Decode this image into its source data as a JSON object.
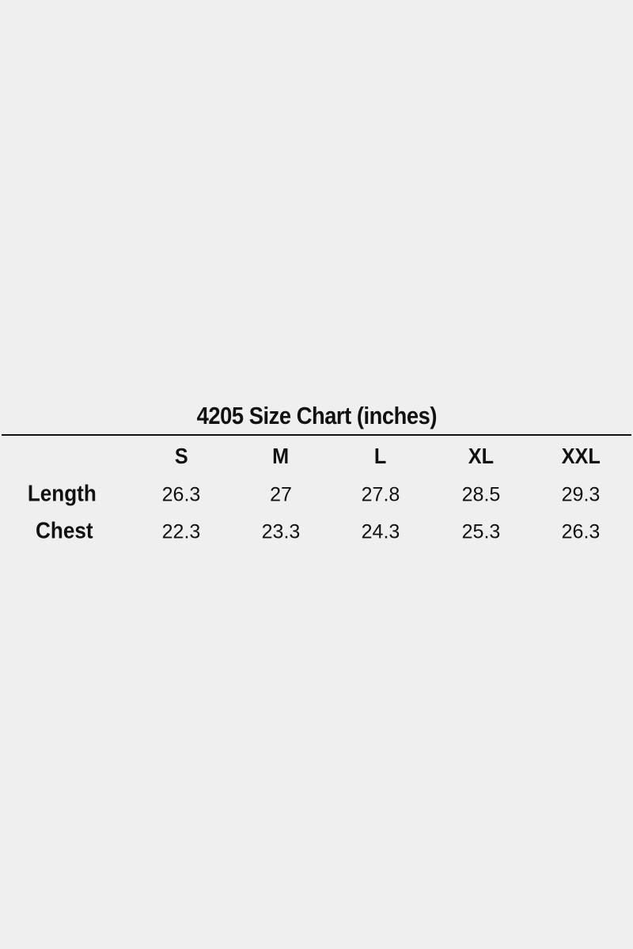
{
  "title": "4205 Size Chart (inches)",
  "columns": [
    "S",
    "M",
    "L",
    "XL",
    "XXL"
  ],
  "rows": [
    {
      "label": "Length",
      "values": [
        "26.3",
        "27",
        "27.8",
        "28.5",
        "29.3"
      ]
    },
    {
      "label": "Chest",
      "values": [
        "22.3",
        "23.3",
        "24.3",
        "25.3",
        "26.3"
      ]
    }
  ]
}
